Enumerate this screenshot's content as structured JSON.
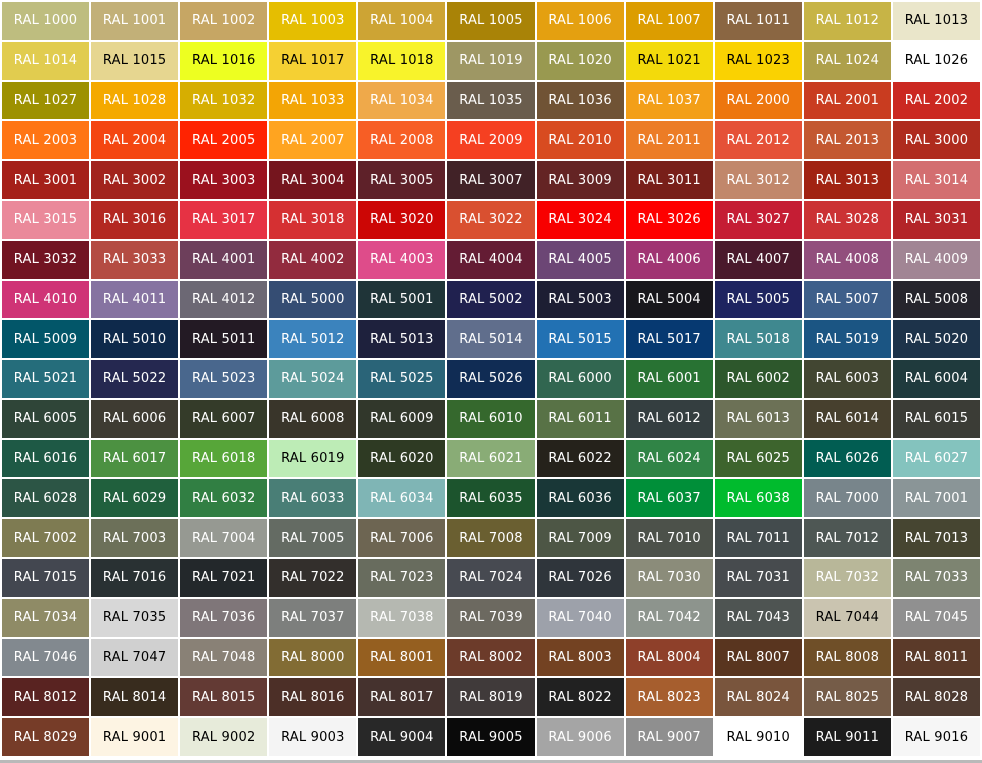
{
  "page": {
    "title": "RAL color chart",
    "gap_color": "#FFFFFF",
    "bottom_edge_color": "#B9B9B9"
  },
  "grid": {
    "columns": 11,
    "rows": 19
  },
  "cells": [
    {
      "label": "RAL 1000",
      "color": "#BEBD7F",
      "text": "#FFFFFF"
    },
    {
      "label": "RAL 1001",
      "color": "#C2B078",
      "text": "#FFFFFF"
    },
    {
      "label": "RAL 1002",
      "color": "#C6A664",
      "text": "#FFFFFF"
    },
    {
      "label": "RAL 1003",
      "color": "#E5BE01",
      "text": "#FFFFFF"
    },
    {
      "label": "RAL 1004",
      "color": "#CDA434",
      "text": "#FFFFFF"
    },
    {
      "label": "RAL 1005",
      "color": "#A98307",
      "text": "#FFFFFF"
    },
    {
      "label": "RAL 1006",
      "color": "#E4A010",
      "text": "#FFFFFF"
    },
    {
      "label": "RAL 1007",
      "color": "#DC9D00",
      "text": "#FFFFFF"
    },
    {
      "label": "RAL 1011",
      "color": "#8A6642",
      "text": "#FFFFFF"
    },
    {
      "label": "RAL 1012",
      "color": "#C7B446",
      "text": "#FFFFFF"
    },
    {
      "label": "RAL 1013",
      "color": "#EAE6CA",
      "text": "#000000"
    },
    {
      "label": "RAL 1014",
      "color": "#E1CC4F",
      "text": "#FFFFFF"
    },
    {
      "label": "RAL 1015",
      "color": "#E6D690",
      "text": "#000000"
    },
    {
      "label": "RAL 1016",
      "color": "#EDFF21",
      "text": "#000000"
    },
    {
      "label": "RAL 1017",
      "color": "#F5D033",
      "text": "#000000"
    },
    {
      "label": "RAL 1018",
      "color": "#F8F32B",
      "text": "#000000"
    },
    {
      "label": "RAL 1019",
      "color": "#9E9764",
      "text": "#FFFFFF"
    },
    {
      "label": "RAL 1020",
      "color": "#999950",
      "text": "#FFFFFF"
    },
    {
      "label": "RAL 1021",
      "color": "#F3DA0B",
      "text": "#000000"
    },
    {
      "label": "RAL 1023",
      "color": "#FAD201",
      "text": "#000000"
    },
    {
      "label": "RAL 1024",
      "color": "#AEA04B",
      "text": "#FFFFFF"
    },
    {
      "label": "RAL 1026",
      "color": "#FFFFFF",
      "text": "#000000"
    },
    {
      "label": "RAL 1027",
      "color": "#9D9101",
      "text": "#FFFFFF"
    },
    {
      "label": "RAL 1028",
      "color": "#F4A900",
      "text": "#FFFFFF"
    },
    {
      "label": "RAL 1032",
      "color": "#D6AE01",
      "text": "#FFFFFF"
    },
    {
      "label": "RAL 1033",
      "color": "#F3A505",
      "text": "#FFFFFF"
    },
    {
      "label": "RAL 1034",
      "color": "#EFA94A",
      "text": "#FFFFFF"
    },
    {
      "label": "RAL 1035",
      "color": "#6A5D4D",
      "text": "#FFFFFF"
    },
    {
      "label": "RAL 1036",
      "color": "#705335",
      "text": "#FFFFFF"
    },
    {
      "label": "RAL 1037",
      "color": "#F39F18",
      "text": "#FFFFFF"
    },
    {
      "label": "RAL 2000",
      "color": "#ED760E",
      "text": "#FFFFFF"
    },
    {
      "label": "RAL 2001",
      "color": "#C93C20",
      "text": "#FFFFFF"
    },
    {
      "label": "RAL 2002",
      "color": "#CB2821",
      "text": "#FFFFFF"
    },
    {
      "label": "RAL 2003",
      "color": "#FF7514",
      "text": "#FFFFFF"
    },
    {
      "label": "RAL 2004",
      "color": "#F44611",
      "text": "#FFFFFF"
    },
    {
      "label": "RAL 2005",
      "color": "#FF2301",
      "text": "#FFFFFF"
    },
    {
      "label": "RAL 2007",
      "color": "#FFA420",
      "text": "#FFFFFF"
    },
    {
      "label": "RAL 2008",
      "color": "#F75E25",
      "text": "#FFFFFF"
    },
    {
      "label": "RAL 2009",
      "color": "#F54021",
      "text": "#FFFFFF"
    },
    {
      "label": "RAL 2010",
      "color": "#D84B20",
      "text": "#FFFFFF"
    },
    {
      "label": "RAL 2011",
      "color": "#EC7C26",
      "text": "#FFFFFF"
    },
    {
      "label": "RAL 2012",
      "color": "#E55137",
      "text": "#FFFFFF"
    },
    {
      "label": "RAL 2013",
      "color": "#C35831",
      "text": "#FFFFFF"
    },
    {
      "label": "RAL 3000",
      "color": "#AF2B1E",
      "text": "#FFFFFF"
    },
    {
      "label": "RAL 3001",
      "color": "#A52019",
      "text": "#FFFFFF"
    },
    {
      "label": "RAL 3002",
      "color": "#A2231D",
      "text": "#FFFFFF"
    },
    {
      "label": "RAL 3003",
      "color": "#9B111E",
      "text": "#FFFFFF"
    },
    {
      "label": "RAL 3004",
      "color": "#75151E",
      "text": "#FFFFFF"
    },
    {
      "label": "RAL 3005",
      "color": "#5E2129",
      "text": "#FFFFFF"
    },
    {
      "label": "RAL 3007",
      "color": "#412227",
      "text": "#FFFFFF"
    },
    {
      "label": "RAL 3009",
      "color": "#642424",
      "text": "#FFFFFF"
    },
    {
      "label": "RAL 3011",
      "color": "#781F19",
      "text": "#FFFFFF"
    },
    {
      "label": "RAL 3012",
      "color": "#C1876B",
      "text": "#FFFFFF"
    },
    {
      "label": "RAL 3013",
      "color": "#A12312",
      "text": "#FFFFFF"
    },
    {
      "label": "RAL 3014",
      "color": "#D36E70",
      "text": "#FFFFFF"
    },
    {
      "label": "RAL 3015",
      "color": "#EA899A",
      "text": "#FFFFFF"
    },
    {
      "label": "RAL 3016",
      "color": "#B32821",
      "text": "#FFFFFF"
    },
    {
      "label": "RAL 3017",
      "color": "#E63244",
      "text": "#FFFFFF"
    },
    {
      "label": "RAL 3018",
      "color": "#D53032",
      "text": "#FFFFFF"
    },
    {
      "label": "RAL 3020",
      "color": "#CC0605",
      "text": "#FFFFFF"
    },
    {
      "label": "RAL 3022",
      "color": "#D95030",
      "text": "#FFFFFF"
    },
    {
      "label": "RAL 3024",
      "color": "#F80000",
      "text": "#FFFFFF"
    },
    {
      "label": "RAL 3026",
      "color": "#FE0000",
      "text": "#FFFFFF"
    },
    {
      "label": "RAL 3027",
      "color": "#C51D34",
      "text": "#FFFFFF"
    },
    {
      "label": "RAL 3028",
      "color": "#CB3234",
      "text": "#FFFFFF"
    },
    {
      "label": "RAL 3031",
      "color": "#B32428",
      "text": "#FFFFFF"
    },
    {
      "label": "RAL 3032",
      "color": "#721422",
      "text": "#FFFFFF"
    },
    {
      "label": "RAL 3033",
      "color": "#B44C43",
      "text": "#FFFFFF"
    },
    {
      "label": "RAL 4001",
      "color": "#6D3F5B",
      "text": "#FFFFFF"
    },
    {
      "label": "RAL 4002",
      "color": "#922B3E",
      "text": "#FFFFFF"
    },
    {
      "label": "RAL 4003",
      "color": "#DE4C8A",
      "text": "#FFFFFF"
    },
    {
      "label": "RAL 4004",
      "color": "#641C34",
      "text": "#FFFFFF"
    },
    {
      "label": "RAL 4005",
      "color": "#6C4675",
      "text": "#FFFFFF"
    },
    {
      "label": "RAL 4006",
      "color": "#A03472",
      "text": "#FFFFFF"
    },
    {
      "label": "RAL 4007",
      "color": "#4A192C",
      "text": "#FFFFFF"
    },
    {
      "label": "RAL 4008",
      "color": "#924E7D",
      "text": "#FFFFFF"
    },
    {
      "label": "RAL 4009",
      "color": "#A18594",
      "text": "#FFFFFF"
    },
    {
      "label": "RAL 4010",
      "color": "#CF3476",
      "text": "#FFFFFF"
    },
    {
      "label": "RAL 4011",
      "color": "#8673A1",
      "text": "#FFFFFF"
    },
    {
      "label": "RAL 4012",
      "color": "#6C6874",
      "text": "#FFFFFF"
    },
    {
      "label": "RAL 5000",
      "color": "#354D73",
      "text": "#FFFFFF"
    },
    {
      "label": "RAL 5001",
      "color": "#1F3438",
      "text": "#FFFFFF"
    },
    {
      "label": "RAL 5002",
      "color": "#20214F",
      "text": "#FFFFFF"
    },
    {
      "label": "RAL 5003",
      "color": "#1D1E33",
      "text": "#FFFFFF"
    },
    {
      "label": "RAL 5004",
      "color": "#18171C",
      "text": "#FFFFFF"
    },
    {
      "label": "RAL 5005",
      "color": "#1E2460",
      "text": "#FFFFFF"
    },
    {
      "label": "RAL 5007",
      "color": "#3E5F8A",
      "text": "#FFFFFF"
    },
    {
      "label": "RAL 5008",
      "color": "#26252D",
      "text": "#FFFFFF"
    },
    {
      "label": "RAL 5009",
      "color": "#025669",
      "text": "#FFFFFF"
    },
    {
      "label": "RAL 5010",
      "color": "#0E294B",
      "text": "#FFFFFF"
    },
    {
      "label": "RAL 5011",
      "color": "#231A24",
      "text": "#FFFFFF"
    },
    {
      "label": "RAL 5012",
      "color": "#3B83BD",
      "text": "#FFFFFF"
    },
    {
      "label": "RAL 5013",
      "color": "#1E213D",
      "text": "#FFFFFF"
    },
    {
      "label": "RAL 5014",
      "color": "#606E8C",
      "text": "#FFFFFF"
    },
    {
      "label": "RAL 5015",
      "color": "#2271B3",
      "text": "#FFFFFF"
    },
    {
      "label": "RAL 5017",
      "color": "#063971",
      "text": "#FFFFFF"
    },
    {
      "label": "RAL 5018",
      "color": "#3F888F",
      "text": "#FFFFFF"
    },
    {
      "label": "RAL 5019",
      "color": "#1B5583",
      "text": "#FFFFFF"
    },
    {
      "label": "RAL 5020",
      "color": "#1D334A",
      "text": "#FFFFFF"
    },
    {
      "label": "RAL 5021",
      "color": "#256D7B",
      "text": "#FFFFFF"
    },
    {
      "label": "RAL 5022",
      "color": "#252850",
      "text": "#FFFFFF"
    },
    {
      "label": "RAL 5023",
      "color": "#49678D",
      "text": "#FFFFFF"
    },
    {
      "label": "RAL 5024",
      "color": "#5D9B9B",
      "text": "#FFFFFF"
    },
    {
      "label": "RAL 5025",
      "color": "#2A6478",
      "text": "#FFFFFF"
    },
    {
      "label": "RAL 5026",
      "color": "#102C54",
      "text": "#FFFFFF"
    },
    {
      "label": "RAL 6000",
      "color": "#316650",
      "text": "#FFFFFF"
    },
    {
      "label": "RAL 6001",
      "color": "#287233",
      "text": "#FFFFFF"
    },
    {
      "label": "RAL 6002",
      "color": "#2D572C",
      "text": "#FFFFFF"
    },
    {
      "label": "RAL 6003",
      "color": "#424632",
      "text": "#FFFFFF"
    },
    {
      "label": "RAL 6004",
      "color": "#1F3A3D",
      "text": "#FFFFFF"
    },
    {
      "label": "RAL 6005",
      "color": "#2F4538",
      "text": "#FFFFFF"
    },
    {
      "label": "RAL 6006",
      "color": "#3E3B32",
      "text": "#FFFFFF"
    },
    {
      "label": "RAL 6007",
      "color": "#343B29",
      "text": "#FFFFFF"
    },
    {
      "label": "RAL 6008",
      "color": "#39352A",
      "text": "#FFFFFF"
    },
    {
      "label": "RAL 6009",
      "color": "#31372B",
      "text": "#FFFFFF"
    },
    {
      "label": "RAL 6010",
      "color": "#35682D",
      "text": "#FFFFFF"
    },
    {
      "label": "RAL 6011",
      "color": "#587246",
      "text": "#FFFFFF"
    },
    {
      "label": "RAL 6012",
      "color": "#343E40",
      "text": "#FFFFFF"
    },
    {
      "label": "RAL 6013",
      "color": "#6C7156",
      "text": "#FFFFFF"
    },
    {
      "label": "RAL 6014",
      "color": "#47402E",
      "text": "#FFFFFF"
    },
    {
      "label": "RAL 6015",
      "color": "#3B3C36",
      "text": "#FFFFFF"
    },
    {
      "label": "RAL 6016",
      "color": "#1E5945",
      "text": "#FFFFFF"
    },
    {
      "label": "RAL 6017",
      "color": "#4C9141",
      "text": "#FFFFFF"
    },
    {
      "label": "RAL 6018",
      "color": "#57A639",
      "text": "#FFFFFF"
    },
    {
      "label": "RAL 6019",
      "color": "#BDECB6",
      "text": "#000000"
    },
    {
      "label": "RAL 6020",
      "color": "#2E3A23",
      "text": "#FFFFFF"
    },
    {
      "label": "RAL 6021",
      "color": "#89AC76",
      "text": "#FFFFFF"
    },
    {
      "label": "RAL 6022",
      "color": "#25221B",
      "text": "#FFFFFF"
    },
    {
      "label": "RAL 6024",
      "color": "#308446",
      "text": "#FFFFFF"
    },
    {
      "label": "RAL 6025",
      "color": "#3D642D",
      "text": "#FFFFFF"
    },
    {
      "label": "RAL 6026",
      "color": "#015D52",
      "text": "#FFFFFF"
    },
    {
      "label": "RAL 6027",
      "color": "#84C3BE",
      "text": "#FFFFFF"
    },
    {
      "label": "RAL 6028",
      "color": "#2C5545",
      "text": "#FFFFFF"
    },
    {
      "label": "RAL 6029",
      "color": "#20603D",
      "text": "#FFFFFF"
    },
    {
      "label": "RAL 6032",
      "color": "#317F43",
      "text": "#FFFFFF"
    },
    {
      "label": "RAL 6033",
      "color": "#497E76",
      "text": "#FFFFFF"
    },
    {
      "label": "RAL 6034",
      "color": "#7FB5B5",
      "text": "#FFFFFF"
    },
    {
      "label": "RAL 6035",
      "color": "#1C542D",
      "text": "#FFFFFF"
    },
    {
      "label": "RAL 6036",
      "color": "#193737",
      "text": "#FFFFFF"
    },
    {
      "label": "RAL 6037",
      "color": "#008F39",
      "text": "#FFFFFF"
    },
    {
      "label": "RAL 6038",
      "color": "#00BB2D",
      "text": "#FFFFFF"
    },
    {
      "label": "RAL 7000",
      "color": "#78858B",
      "text": "#FFFFFF"
    },
    {
      "label": "RAL 7001",
      "color": "#8A9597",
      "text": "#FFFFFF"
    },
    {
      "label": "RAL 7002",
      "color": "#7E7B52",
      "text": "#FFFFFF"
    },
    {
      "label": "RAL 7003",
      "color": "#6C7059",
      "text": "#FFFFFF"
    },
    {
      "label": "RAL 7004",
      "color": "#969992",
      "text": "#FFFFFF"
    },
    {
      "label": "RAL 7005",
      "color": "#646B63",
      "text": "#FFFFFF"
    },
    {
      "label": "RAL 7006",
      "color": "#6D6552",
      "text": "#FFFFFF"
    },
    {
      "label": "RAL 7008",
      "color": "#6A5F31",
      "text": "#FFFFFF"
    },
    {
      "label": "RAL 7009",
      "color": "#4D5645",
      "text": "#FFFFFF"
    },
    {
      "label": "RAL 7010",
      "color": "#4C514A",
      "text": "#FFFFFF"
    },
    {
      "label": "RAL 7011",
      "color": "#434B4D",
      "text": "#FFFFFF"
    },
    {
      "label": "RAL 7012",
      "color": "#4E5754",
      "text": "#FFFFFF"
    },
    {
      "label": "RAL 7013",
      "color": "#464531",
      "text": "#FFFFFF"
    },
    {
      "label": "RAL 7015",
      "color": "#434750",
      "text": "#FFFFFF"
    },
    {
      "label": "RAL 7016",
      "color": "#293133",
      "text": "#FFFFFF"
    },
    {
      "label": "RAL 7021",
      "color": "#23282B",
      "text": "#FFFFFF"
    },
    {
      "label": "RAL 7022",
      "color": "#332F2C",
      "text": "#FFFFFF"
    },
    {
      "label": "RAL 7023",
      "color": "#686C5E",
      "text": "#FFFFFF"
    },
    {
      "label": "RAL 7024",
      "color": "#474A51",
      "text": "#FFFFFF"
    },
    {
      "label": "RAL 7026",
      "color": "#2F353B",
      "text": "#FFFFFF"
    },
    {
      "label": "RAL 7030",
      "color": "#8B8C7A",
      "text": "#FFFFFF"
    },
    {
      "label": "RAL 7031",
      "color": "#474B4E",
      "text": "#FFFFFF"
    },
    {
      "label": "RAL 7032",
      "color": "#B8B799",
      "text": "#FFFFFF"
    },
    {
      "label": "RAL 7033",
      "color": "#7D8471",
      "text": "#FFFFFF"
    },
    {
      "label": "RAL 7034",
      "color": "#8F8B66",
      "text": "#FFFFFF"
    },
    {
      "label": "RAL 7035",
      "color": "#D7D7D7",
      "text": "#000000"
    },
    {
      "label": "RAL 7036",
      "color": "#7F7679",
      "text": "#FFFFFF"
    },
    {
      "label": "RAL 7037",
      "color": "#7D7F7D",
      "text": "#FFFFFF"
    },
    {
      "label": "RAL 7038",
      "color": "#B5B8B1",
      "text": "#FFFFFF"
    },
    {
      "label": "RAL 7039",
      "color": "#6C6960",
      "text": "#FFFFFF"
    },
    {
      "label": "RAL 7040",
      "color": "#9DA1AA",
      "text": "#FFFFFF"
    },
    {
      "label": "RAL 7042",
      "color": "#8D948D",
      "text": "#FFFFFF"
    },
    {
      "label": "RAL 7043",
      "color": "#4E5452",
      "text": "#FFFFFF"
    },
    {
      "label": "RAL 7044",
      "color": "#CAC4B0",
      "text": "#000000"
    },
    {
      "label": "RAL 7045",
      "color": "#909090",
      "text": "#FFFFFF"
    },
    {
      "label": "RAL 7046",
      "color": "#82898F",
      "text": "#FFFFFF"
    },
    {
      "label": "RAL 7047",
      "color": "#D0D0D0",
      "text": "#000000"
    },
    {
      "label": "RAL 7048",
      "color": "#898176",
      "text": "#FFFFFF"
    },
    {
      "label": "RAL 8000",
      "color": "#826C34",
      "text": "#FFFFFF"
    },
    {
      "label": "RAL 8001",
      "color": "#955F20",
      "text": "#FFFFFF"
    },
    {
      "label": "RAL 8002",
      "color": "#6C3B2A",
      "text": "#FFFFFF"
    },
    {
      "label": "RAL 8003",
      "color": "#734222",
      "text": "#FFFFFF"
    },
    {
      "label": "RAL 8004",
      "color": "#8E402A",
      "text": "#FFFFFF"
    },
    {
      "label": "RAL 8007",
      "color": "#59351F",
      "text": "#FFFFFF"
    },
    {
      "label": "RAL 8008",
      "color": "#6F4F28",
      "text": "#FFFFFF"
    },
    {
      "label": "RAL 8011",
      "color": "#5B3A29",
      "text": "#FFFFFF"
    },
    {
      "label": "RAL 8012",
      "color": "#592321",
      "text": "#FFFFFF"
    },
    {
      "label": "RAL 8014",
      "color": "#382C1E",
      "text": "#FFFFFF"
    },
    {
      "label": "RAL 8015",
      "color": "#633A34",
      "text": "#FFFFFF"
    },
    {
      "label": "RAL 8016",
      "color": "#4C2F27",
      "text": "#FFFFFF"
    },
    {
      "label": "RAL 8017",
      "color": "#45322E",
      "text": "#FFFFFF"
    },
    {
      "label": "RAL 8019",
      "color": "#403A3A",
      "text": "#FFFFFF"
    },
    {
      "label": "RAL 8022",
      "color": "#212121",
      "text": "#FFFFFF"
    },
    {
      "label": "RAL 8023",
      "color": "#A65E2E",
      "text": "#FFFFFF"
    },
    {
      "label": "RAL 8024",
      "color": "#79553D",
      "text": "#FFFFFF"
    },
    {
      "label": "RAL 8025",
      "color": "#755C48",
      "text": "#FFFFFF"
    },
    {
      "label": "RAL 8028",
      "color": "#4E3B31",
      "text": "#FFFFFF"
    },
    {
      "label": "RAL 8029",
      "color": "#763C28",
      "text": "#FFFFFF"
    },
    {
      "label": "RAL 9001",
      "color": "#FDF4E3",
      "text": "#000000"
    },
    {
      "label": "RAL 9002",
      "color": "#E7EBDA",
      "text": "#000000"
    },
    {
      "label": "RAL 9003",
      "color": "#F4F4F4",
      "text": "#000000"
    },
    {
      "label": "RAL 9004",
      "color": "#282828",
      "text": "#FFFFFF"
    },
    {
      "label": "RAL 9005",
      "color": "#0A0A0A",
      "text": "#FFFFFF"
    },
    {
      "label": "RAL 9006",
      "color": "#A5A5A5",
      "text": "#FFFFFF"
    },
    {
      "label": "RAL 9007",
      "color": "#8F8F8F",
      "text": "#FFFFFF"
    },
    {
      "label": "RAL 9010",
      "color": "#FFFFFF",
      "text": "#000000"
    },
    {
      "label": "RAL 9011",
      "color": "#1C1C1C",
      "text": "#FFFFFF"
    },
    {
      "label": "RAL 9016",
      "color": "#F6F6F6",
      "text": "#000000"
    }
  ]
}
